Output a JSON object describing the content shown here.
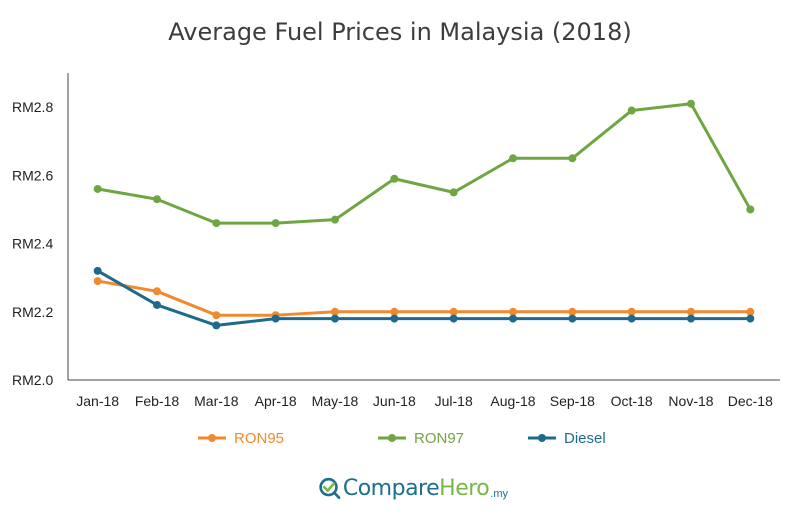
{
  "chart_data": {
    "type": "line",
    "title": "Average Fuel Prices in Malaysia (2018)",
    "xlabel": "",
    "ylabel": "",
    "categories": [
      "Jan-18",
      "Feb-18",
      "Mar-18",
      "Apr-18",
      "May-18",
      "Jun-18",
      "Jul-18",
      "Aug-18",
      "Sep-18",
      "Oct-18",
      "Nov-18",
      "Dec-18"
    ],
    "y_ticks": [
      2.0,
      2.2,
      2.4,
      2.6,
      2.8
    ],
    "y_tick_prefix": "RM",
    "ylim": [
      2.0,
      2.9
    ],
    "grid": false,
    "legend_position": "bottom",
    "series": [
      {
        "name": "RON95",
        "color": "#f08a2e",
        "values": [
          2.29,
          2.26,
          2.19,
          2.19,
          2.2,
          2.2,
          2.2,
          2.2,
          2.2,
          2.2,
          2.2,
          2.2
        ]
      },
      {
        "name": "RON97",
        "color": "#6fa542",
        "values": [
          2.56,
          2.53,
          2.46,
          2.46,
          2.47,
          2.59,
          2.55,
          2.65,
          2.65,
          2.79,
          2.81,
          2.5
        ]
      },
      {
        "name": "Diesel",
        "color": "#1e6a8d",
        "values": [
          2.32,
          2.22,
          2.16,
          2.18,
          2.18,
          2.18,
          2.18,
          2.18,
          2.18,
          2.18,
          2.18,
          2.18
        ]
      }
    ]
  },
  "brand": {
    "compare": "Compare",
    "hero": "Hero",
    "tld": ".my",
    "compare_color": "#1c6f8f",
    "hero_color": "#7ab648"
  }
}
